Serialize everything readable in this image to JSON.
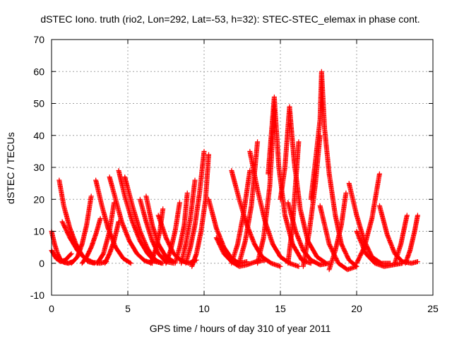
{
  "chart_data": {
    "type": "scatter",
    "title": "dSTEC Iono. truth (rio2, Lon=292, Lat=-53, h=32): STEC-STEC_elemax in phase cont.",
    "xlabel": "GPS time / hours of day 310 of year 2011",
    "ylabel": "dSTEC  / TECUs",
    "xlim": [
      0,
      25
    ],
    "ylim": [
      -10,
      70
    ],
    "xticks": [
      0,
      5,
      10,
      15,
      20,
      25
    ],
    "yticks": [
      -10,
      0,
      10,
      20,
      30,
      40,
      50,
      60,
      70
    ],
    "grid": true,
    "marker": "+",
    "color": "#ff0000",
    "series": [
      {
        "x": [
          0.0,
          0.2,
          0.4,
          0.6,
          0.8,
          1.1,
          1.4
        ],
        "y": [
          10,
          6,
          3,
          1,
          0.3,
          0,
          0.5
        ]
      },
      {
        "x": [
          0.0,
          0.3,
          0.6,
          0.9,
          1.3
        ],
        "y": [
          4,
          1.5,
          0.5,
          1,
          3
        ]
      },
      {
        "x": [
          0.5,
          0.8,
          1.2,
          1.6,
          2.0,
          2.4,
          2.8
        ],
        "y": [
          26,
          18,
          11,
          6,
          2.5,
          0.5,
          0
        ]
      },
      {
        "x": [
          0.7,
          1.2,
          1.7,
          2.2,
          2.7,
          3.2,
          3.6
        ],
        "y": [
          13,
          8,
          4,
          1.5,
          0.3,
          0,
          0.5
        ]
      },
      {
        "x": [
          1.3,
          1.7,
          2.0,
          2.3,
          2.6
        ],
        "y": [
          0,
          2,
          6,
          12,
          21
        ]
      },
      {
        "x": [
          2.0,
          2.3,
          2.6,
          2.9,
          3.2
        ],
        "y": [
          0,
          2,
          5,
          9,
          14
        ]
      },
      {
        "x": [
          2.9,
          3.3,
          3.7,
          4.2,
          4.7,
          5.2
        ],
        "y": [
          26,
          18,
          11,
          5,
          1.5,
          0
        ]
      },
      {
        "x": [
          3.0,
          3.4,
          3.8,
          4.1
        ],
        "y": [
          0,
          3,
          10,
          19
        ]
      },
      {
        "x": [
          3.8,
          4.2,
          4.6,
          5.1,
          5.6,
          6.1,
          6.6
        ],
        "y": [
          27,
          20,
          13,
          7,
          3,
          0.8,
          0
        ]
      },
      {
        "x": [
          3.5,
          3.8,
          4.1,
          4.4
        ],
        "y": [
          0,
          3,
          7,
          13
        ]
      },
      {
        "x": [
          4.4,
          4.8,
          5.3,
          5.8,
          6.3,
          6.8,
          7.3
        ],
        "y": [
          29,
          21,
          13,
          7,
          3,
          0.5,
          0
        ]
      },
      {
        "x": [
          4.8,
          5.3,
          5.8,
          6.3,
          6.8,
          7.2
        ],
        "y": [
          27,
          18,
          10,
          4.5,
          1,
          0
        ]
      },
      {
        "x": [
          5.8,
          6.2,
          6.6,
          7.0,
          7.5,
          8.0
        ],
        "y": [
          20,
          13,
          7,
          3,
          0.5,
          0
        ]
      },
      {
        "x": [
          6.2,
          6.6,
          7.0,
          7.5,
          8.0
        ],
        "y": [
          21,
          12,
          6,
          2,
          0.5
        ]
      },
      {
        "x": [
          6.5,
          6.8,
          7.1,
          7.3
        ],
        "y": [
          0,
          4,
          10,
          17
        ]
      },
      {
        "x": [
          7.0,
          7.5,
          8.0,
          8.5,
          9.0,
          9.5
        ],
        "y": [
          15,
          8,
          3,
          0.8,
          0,
          1
        ]
      },
      {
        "x": [
          7.5,
          7.8,
          8.1,
          8.4
        ],
        "y": [
          0,
          4,
          10,
          19
        ]
      },
      {
        "x": [
          8.1,
          8.4,
          8.7,
          8.9
        ],
        "y": [
          0,
          5,
          12,
          22
        ]
      },
      {
        "x": [
          8.5,
          8.8,
          9.1,
          9.4
        ],
        "y": [
          0,
          6,
          14,
          26
        ]
      },
      {
        "x": [
          8.8,
          9.1,
          9.4,
          9.7,
          10.0
        ],
        "y": [
          0,
          5,
          12,
          22,
          35
        ]
      },
      {
        "x": [
          9.2,
          9.5,
          9.8,
          10.1,
          10.3
        ],
        "y": [
          -1,
          3,
          10,
          20,
          34
        ]
      },
      {
        "x": [
          10.3,
          10.8,
          11.3,
          11.8,
          12.3,
          12.8
        ],
        "y": [
          20,
          11,
          5,
          1.5,
          0,
          0.5
        ]
      },
      {
        "x": [
          10.8,
          11.3,
          11.8,
          12.3,
          12.8,
          13.4,
          14.0
        ],
        "y": [
          8,
          3,
          0.5,
          -1,
          -0.5,
          0.5,
          1
        ]
      },
      {
        "x": [
          11.8,
          12.3,
          12.8,
          13.3,
          13.8,
          14.4,
          15.0
        ],
        "y": [
          29,
          20,
          12,
          6,
          2,
          0,
          -1
        ]
      },
      {
        "x": [
          11.8,
          12.2,
          12.6,
          13.0
        ],
        "y": [
          0,
          6,
          16,
          29
        ]
      },
      {
        "x": [
          12.3,
          12.7,
          13.1,
          13.5
        ],
        "y": [
          0,
          7,
          18,
          38
        ]
      },
      {
        "x": [
          13.0,
          13.5,
          14.0,
          14.5,
          15.0,
          15.6,
          16.2
        ],
        "y": [
          35,
          23,
          13,
          6,
          2,
          0,
          -1
        ]
      },
      {
        "x": [
          13.5,
          13.9,
          14.3,
          14.6
        ],
        "y": [
          0,
          8,
          24,
          48
        ]
      },
      {
        "x": [
          14.2,
          14.4,
          14.6,
          14.9,
          15.3,
          15.8,
          16.4,
          17.0
        ],
        "y": [
          28,
          40,
          52,
          30,
          15,
          6,
          1,
          0
        ]
      },
      {
        "x": [
          15.0,
          15.3,
          15.6,
          15.9,
          16.3,
          16.8,
          17.4,
          18.0
        ],
        "y": [
          20,
          30,
          49,
          32,
          17,
          7,
          2,
          0
        ]
      },
      {
        "x": [
          15.5,
          15.8,
          16.0,
          16.2
        ],
        "y": [
          0,
          12,
          25,
          38
        ]
      },
      {
        "x": [
          15.5,
          16.0,
          16.5,
          17.0,
          17.6,
          18.2
        ],
        "y": [
          19,
          10,
          4,
          1,
          -0.5,
          0
        ]
      },
      {
        "x": [
          16.5,
          16.9,
          17.3,
          17.6
        ],
        "y": [
          -1,
          10,
          25,
          40
        ]
      },
      {
        "x": [
          17.0,
          17.3,
          17.6,
          17.7,
          17.9,
          18.2,
          18.6,
          19.0,
          19.5,
          20.0
        ],
        "y": [
          20,
          32,
          45,
          60,
          42,
          28,
          15,
          6,
          1,
          -1
        ]
      },
      {
        "x": [
          17.6,
          18.2,
          18.8,
          19.4,
          20.0
        ],
        "y": [
          18,
          6,
          0,
          -2,
          -1
        ]
      },
      {
        "x": [
          18.2,
          18.6,
          19.0,
          19.3
        ],
        "y": [
          -2,
          4,
          12,
          22
        ]
      },
      {
        "x": [
          19.5,
          20.0,
          20.5,
          21.0,
          21.6,
          22.2
        ],
        "y": [
          25,
          15,
          7,
          2,
          0,
          0
        ]
      },
      {
        "x": [
          20.0,
          20.6,
          21.2,
          21.8,
          22.4,
          23.0
        ],
        "y": [
          10,
          3,
          0,
          -1,
          -0.5,
          0
        ]
      },
      {
        "x": [
          20.0,
          20.5,
          21.0,
          21.5
        ],
        "y": [
          0,
          5,
          14,
          28
        ]
      },
      {
        "x": [
          21.5,
          22.0,
          22.5,
          23.0,
          23.6,
          24.0
        ],
        "y": [
          18,
          9,
          3,
          0.5,
          0,
          0.5
        ]
      },
      {
        "x": [
          22.5,
          22.9,
          23.3
        ],
        "y": [
          0,
          6,
          15
        ]
      },
      {
        "x": [
          23.2,
          23.5,
          23.8,
          24.0
        ],
        "y": [
          0,
          4,
          10,
          15
        ]
      }
    ]
  }
}
